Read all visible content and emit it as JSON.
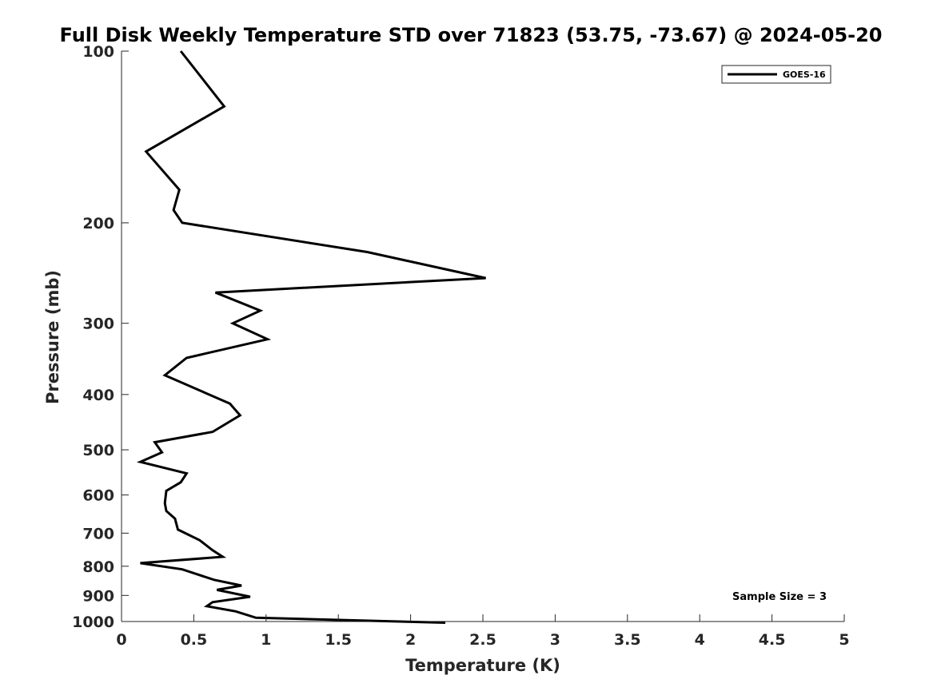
{
  "chart_data": {
    "type": "line",
    "title": "Full Disk Weekly Temperature STD over 71823 (53.75, -73.67) @ 2024-05-20",
    "xlabel": "Temperature (K)",
    "ylabel": "Pressure (mb)",
    "xlim": [
      0,
      5
    ],
    "ylim": [
      100,
      1000
    ],
    "y_scale": "log",
    "y_reversed": true,
    "grid": false,
    "legend_position": "top-right",
    "x_ticks": [
      "0",
      "0.5",
      "1",
      "1.5",
      "2",
      "2.5",
      "3",
      "3.5",
      "4",
      "4.5",
      "5"
    ],
    "x_tick_values": [
      0,
      0.5,
      1,
      1.5,
      2,
      2.5,
      3,
      3.5,
      4,
      4.5,
      5
    ],
    "y_ticks": [
      "100",
      "200",
      "300",
      "400",
      "500",
      "600",
      "700",
      "800",
      "900",
      "1000"
    ],
    "y_tick_values": [
      100,
      200,
      300,
      400,
      500,
      600,
      700,
      800,
      900,
      1000
    ],
    "series": [
      {
        "name": "GOES-16",
        "color": "#000000",
        "points": [
          [
            0.41,
            100
          ],
          [
            0.71,
            125
          ],
          [
            0.17,
            150
          ],
          [
            0.4,
            175
          ],
          [
            0.36,
            190
          ],
          [
            0.42,
            200
          ],
          [
            1.7,
            225
          ],
          [
            2.52,
            250
          ],
          [
            0.65,
            265
          ],
          [
            0.96,
            285
          ],
          [
            0.77,
            300
          ],
          [
            1.01,
            320
          ],
          [
            0.45,
            345
          ],
          [
            0.3,
            370
          ],
          [
            0.75,
            415
          ],
          [
            0.82,
            435
          ],
          [
            0.63,
            465
          ],
          [
            0.23,
            485
          ],
          [
            0.28,
            505
          ],
          [
            0.13,
            525
          ],
          [
            0.45,
            550
          ],
          [
            0.41,
            570
          ],
          [
            0.31,
            590
          ],
          [
            0.3,
            620
          ],
          [
            0.31,
            640
          ],
          [
            0.37,
            660
          ],
          [
            0.39,
            690
          ],
          [
            0.54,
            720
          ],
          [
            0.63,
            750
          ],
          [
            0.7,
            770
          ],
          [
            0.13,
            790
          ],
          [
            0.42,
            810
          ],
          [
            0.64,
            845
          ],
          [
            0.83,
            865
          ],
          [
            0.66,
            880
          ],
          [
            0.89,
            905
          ],
          [
            0.63,
            925
          ],
          [
            0.59,
            940
          ],
          [
            0.79,
            960
          ],
          [
            0.93,
            985
          ],
          [
            2.24,
            1005
          ]
        ]
      }
    ],
    "annotations": [
      "Sample Size = 3"
    ]
  }
}
